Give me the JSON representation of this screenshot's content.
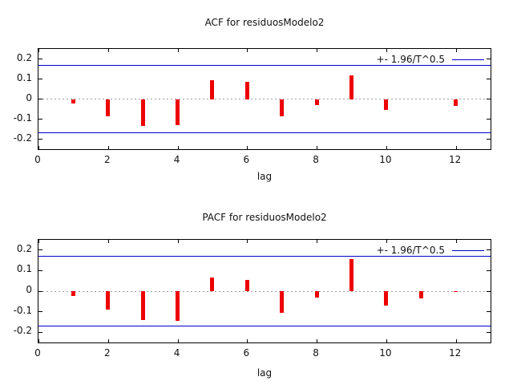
{
  "colors": {
    "bar": "#ee0000",
    "band_line": "#0000cc",
    "zero_line": "#9e9e9e",
    "axis": "#000000",
    "text": "#111111",
    "background": "#ffffff"
  },
  "chart_data": [
    {
      "id": "acf",
      "type": "bar",
      "title": "ACF for residuosModelo2",
      "xlabel": "lag",
      "legend_label": "+- 1.96/T^0.5",
      "x": [
        1,
        2,
        3,
        4,
        5,
        6,
        7,
        8,
        9,
        10,
        11,
        12
      ],
      "values": [
        -0.02,
        -0.085,
        -0.135,
        -0.13,
        0.095,
        0.085,
        -0.085,
        -0.03,
        0.12,
        -0.055,
        0.0,
        -0.035
      ],
      "confidence_band": 0.169,
      "xlim": [
        0,
        13
      ],
      "ylim": [
        -0.25,
        0.25
      ],
      "xticks": [
        0,
        2,
        4,
        6,
        8,
        10,
        12
      ],
      "yticks": [
        -0.2,
        -0.1,
        0,
        0.1,
        0.2
      ],
      "ytick_labels": [
        "-0.2",
        "-0.1",
        "0",
        "0.1",
        "0.2"
      ],
      "zero_line": true,
      "legend_position": "top-right"
    },
    {
      "id": "pacf",
      "type": "bar",
      "title": "PACF for residuosModelo2",
      "xlabel": "lag",
      "legend_label": "+- 1.96/T^0.5",
      "x": [
        1,
        2,
        3,
        4,
        5,
        6,
        7,
        8,
        9,
        10,
        11,
        12
      ],
      "values": [
        -0.025,
        -0.09,
        -0.14,
        -0.145,
        0.065,
        0.055,
        -0.105,
        -0.03,
        0.155,
        -0.07,
        -0.035,
        -0.005
      ],
      "confidence_band": 0.169,
      "xlim": [
        0,
        13
      ],
      "ylim": [
        -0.25,
        0.25
      ],
      "xticks": [
        0,
        2,
        4,
        6,
        8,
        10,
        12
      ],
      "yticks": [
        -0.2,
        -0.1,
        0,
        0.1,
        0.2
      ],
      "ytick_labels": [
        "-0.2",
        "-0.1",
        "0",
        "0.1",
        "0.2"
      ],
      "zero_line": true,
      "legend_position": "top-right"
    }
  ]
}
